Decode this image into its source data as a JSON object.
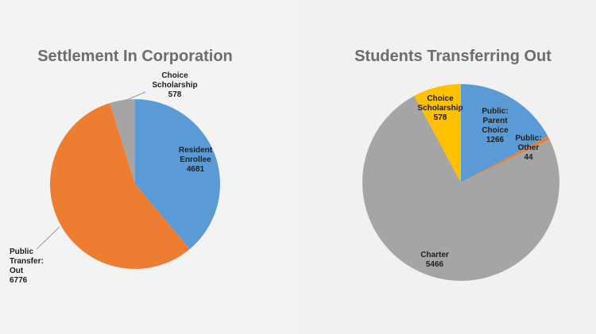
{
  "chart_data": [
    {
      "type": "pie",
      "title": "Settlement In Corporation",
      "slices": [
        {
          "label_lines": [
            "Resident",
            "Enrollee"
          ],
          "value": 4681,
          "color": "#5b9bd5"
        },
        {
          "label_lines": [
            "Public",
            "Transfer:",
            "Out"
          ],
          "value": 6776,
          "color": "#ed7d31"
        },
        {
          "label_lines": [
            "Choice",
            "Scholarship"
          ],
          "value": 578,
          "color": "#a5a5a5"
        }
      ]
    },
    {
      "type": "pie",
      "title": "Students Transferring Out",
      "slices": [
        {
          "label_lines": [
            "Public:",
            "Parent",
            "Choice"
          ],
          "value": 1266,
          "color": "#5b9bd5"
        },
        {
          "label_lines": [
            "Public:",
            "Other"
          ],
          "value": 44,
          "color": "#ed7d31"
        },
        {
          "label_lines": [
            "Charter"
          ],
          "value": 5466,
          "color": "#a5a5a5"
        },
        {
          "label_lines": [
            "Choice",
            "Scholarship"
          ],
          "value": 578,
          "color": "#ffc000"
        }
      ]
    }
  ]
}
